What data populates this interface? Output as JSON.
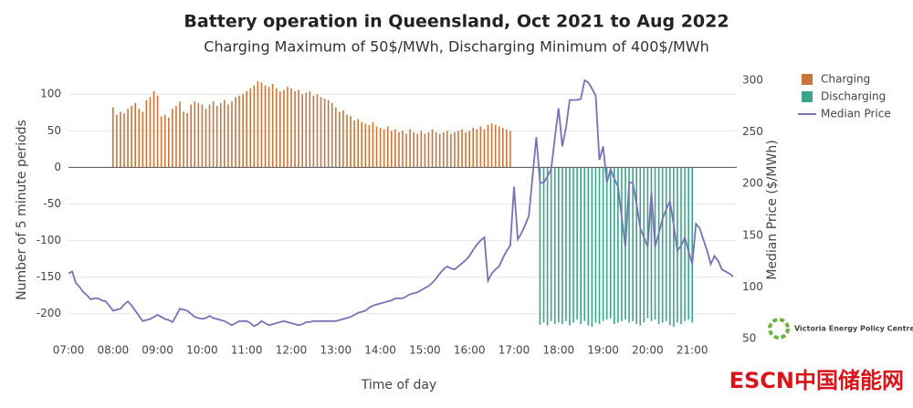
{
  "chart_data": {
    "type": "bar-line",
    "title": "Battery operation in Queensland, Oct 2021 to Aug 2022",
    "subtitle": "Charging Maximum of 50$/MWh, Discharging Minimum of 400$/MWh",
    "xlabel": "Time of day",
    "ylabel": "Number of 5 minute periods",
    "y2label": "Median Price ($/MWh)",
    "xlim": [
      "07:00",
      "22:00"
    ],
    "xticks": [
      "07:00",
      "08:00",
      "09:00",
      "10:00",
      "11:00",
      "12:00",
      "13:00",
      "14:00",
      "15:00",
      "16:00",
      "17:00",
      "18:00",
      "19:00",
      "20:00",
      "21:00"
    ],
    "ylim": [
      -234,
      119
    ],
    "yticks": [
      100,
      50,
      0,
      -50,
      -100,
      -150,
      -200
    ],
    "y2lim": [
      50,
      300
    ],
    "y2ticks": [
      50,
      100,
      150,
      200,
      250,
      300
    ],
    "grid": true,
    "legend": "top-right",
    "x": [
      "07:00",
      "07:05",
      "07:10",
      "07:15",
      "07:20",
      "07:25",
      "07:30",
      "07:35",
      "07:40",
      "07:45",
      "07:50",
      "07:55",
      "08:00",
      "08:05",
      "08:10",
      "08:15",
      "08:20",
      "08:25",
      "08:30",
      "08:35",
      "08:40",
      "08:45",
      "08:50",
      "08:55",
      "09:00",
      "09:05",
      "09:10",
      "09:15",
      "09:20",
      "09:25",
      "09:30",
      "09:35",
      "09:40",
      "09:45",
      "09:50",
      "09:55",
      "10:00",
      "10:05",
      "10:10",
      "10:15",
      "10:20",
      "10:25",
      "10:30",
      "10:35",
      "10:40",
      "10:45",
      "10:50",
      "10:55",
      "11:00",
      "11:05",
      "11:10",
      "11:15",
      "11:20",
      "11:25",
      "11:30",
      "11:35",
      "11:40",
      "11:45",
      "11:50",
      "11:55",
      "12:00",
      "12:05",
      "12:10",
      "12:15",
      "12:20",
      "12:25",
      "12:30",
      "12:35",
      "12:40",
      "12:45",
      "12:50",
      "12:55",
      "13:00",
      "13:05",
      "13:10",
      "13:15",
      "13:20",
      "13:25",
      "13:30",
      "13:35",
      "13:40",
      "13:45",
      "13:50",
      "13:55",
      "14:00",
      "14:05",
      "14:10",
      "14:15",
      "14:20",
      "14:25",
      "14:30",
      "14:35",
      "14:40",
      "14:45",
      "14:50",
      "14:55",
      "15:00",
      "15:05",
      "15:10",
      "15:15",
      "15:20",
      "15:25",
      "15:30",
      "15:35",
      "15:40",
      "15:45",
      "15:50",
      "15:55",
      "16:00",
      "16:05",
      "16:10",
      "16:15",
      "16:20",
      "16:25",
      "16:30",
      "16:35",
      "16:40",
      "16:45",
      "16:50",
      "16:55",
      "17:00",
      "17:05",
      "17:10",
      "17:15",
      "17:20",
      "17:25",
      "17:30",
      "17:35",
      "17:40",
      "17:45",
      "17:50",
      "17:55",
      "18:00",
      "18:05",
      "18:10",
      "18:15",
      "18:20",
      "18:25",
      "18:30",
      "18:35",
      "18:40",
      "18:45",
      "18:50",
      "18:55",
      "19:00",
      "19:05",
      "19:10",
      "19:15",
      "19:20",
      "19:25",
      "19:30",
      "19:35",
      "19:40",
      "19:45",
      "19:50",
      "19:55",
      "20:00",
      "20:05",
      "20:10",
      "20:15",
      "20:20",
      "20:25",
      "20:30",
      "20:35",
      "20:40",
      "20:45",
      "20:50",
      "20:55",
      "21:00",
      "21:05",
      "21:10",
      "21:15",
      "21:20",
      "21:25",
      "21:30",
      "21:35",
      "21:40",
      "21:45",
      "21:50",
      "21:55"
    ],
    "series": [
      {
        "name": "Charging",
        "color": "#c8773c",
        "kind": "bar",
        "values": [
          null,
          null,
          null,
          null,
          null,
          null,
          null,
          null,
          null,
          null,
          null,
          null,
          82,
          72,
          76,
          74,
          80,
          84,
          88,
          80,
          76,
          92,
          96,
          104,
          98,
          70,
          72,
          68,
          80,
          84,
          90,
          76,
          74,
          86,
          90,
          88,
          86,
          80,
          86,
          90,
          84,
          88,
          92,
          86,
          90,
          96,
          98,
          100,
          104,
          108,
          112,
          118,
          116,
          112,
          110,
          114,
          108,
          104,
          106,
          110,
          108,
          104,
          106,
          100,
          102,
          104,
          98,
          100,
          96,
          94,
          92,
          88,
          82,
          76,
          78,
          72,
          70,
          64,
          66,
          62,
          60,
          58,
          62,
          56,
          54,
          52,
          56,
          50,
          52,
          48,
          50,
          46,
          52,
          48,
          46,
          50,
          46,
          48,
          52,
          48,
          46,
          48,
          50,
          46,
          48,
          50,
          52,
          48,
          50,
          54,
          52,
          56,
          52,
          58,
          60,
          58,
          56,
          54,
          52,
          50,
          null,
          null,
          null,
          null,
          null,
          null,
          null,
          null,
          null,
          null,
          null,
          null,
          null,
          null,
          null,
          null,
          null,
          null,
          null,
          null,
          null,
          null,
          null,
          null,
          null,
          null,
          null,
          null,
          null,
          null,
          null,
          null,
          null,
          null,
          null,
          null,
          null,
          null,
          null,
          null,
          null,
          null,
          null,
          null,
          null,
          null,
          null,
          null,
          null,
          null,
          null,
          null,
          null,
          null,
          null,
          null,
          null,
          null,
          null,
          null
        ]
      },
      {
        "name": "Discharging",
        "color": "#3aa58a",
        "kind": "bar",
        "values": [
          null,
          null,
          null,
          null,
          null,
          null,
          null,
          null,
          null,
          null,
          null,
          null,
          null,
          null,
          null,
          null,
          null,
          null,
          null,
          null,
          null,
          null,
          null,
          null,
          null,
          null,
          null,
          null,
          null,
          null,
          null,
          null,
          null,
          null,
          null,
          null,
          null,
          null,
          null,
          null,
          null,
          null,
          null,
          null,
          null,
          null,
          null,
          null,
          null,
          null,
          null,
          null,
          null,
          null,
          null,
          null,
          null,
          null,
          null,
          null,
          null,
          null,
          null,
          null,
          null,
          null,
          null,
          null,
          null,
          null,
          null,
          null,
          null,
          null,
          null,
          null,
          null,
          null,
          null,
          null,
          null,
          null,
          null,
          null,
          null,
          null,
          null,
          null,
          null,
          null,
          null,
          null,
          null,
          null,
          null,
          null,
          null,
          null,
          null,
          null,
          null,
          null,
          null,
          null,
          null,
          null,
          null,
          null,
          null,
          null,
          null,
          null,
          null,
          null,
          null,
          null,
          null,
          null,
          null,
          null,
          null,
          null,
          null,
          null,
          null,
          null,
          null,
          -215,
          -212,
          -216,
          -210,
          -214,
          -212,
          -214,
          -210,
          -216,
          -212,
          -208,
          -214,
          -210,
          -216,
          -218,
          -212,
          -214,
          -210,
          -208,
          -206,
          -214,
          -212,
          -210,
          -208,
          -212,
          -210,
          -214,
          -216,
          -212,
          -206,
          -210,
          -208,
          -214,
          -212,
          -210,
          -216,
          -218,
          -212,
          -214,
          -210,
          -208,
          -212,
          null,
          null,
          null,
          null,
          null,
          null,
          null,
          null,
          null,
          null,
          null
        ]
      },
      {
        "name": "Median Price",
        "color": "#7474b4",
        "kind": "line",
        "axis": "y2",
        "values": [
          113,
          115,
          104,
          100,
          95,
          92,
          88,
          89,
          89,
          87,
          86,
          82,
          77,
          78,
          79,
          83,
          86,
          82,
          77,
          72,
          67,
          68,
          69,
          71,
          73,
          71,
          69,
          68,
          66,
          72,
          79,
          78,
          77,
          74,
          71,
          70,
          69,
          70,
          72,
          70,
          69,
          68,
          67,
          65,
          63,
          65,
          67,
          67,
          67,
          65,
          62,
          64,
          67,
          65,
          63,
          64,
          65,
          66,
          67,
          66,
          65,
          64,
          63,
          64,
          66,
          66,
          67,
          67,
          67,
          67,
          67,
          67,
          67,
          68,
          69,
          70,
          71,
          73,
          75,
          76,
          77,
          80,
          82,
          83,
          84,
          85,
          86,
          87,
          89,
          89,
          89,
          91,
          93,
          94,
          95,
          97,
          99,
          101,
          104,
          108,
          113,
          117,
          120,
          118,
          117,
          120,
          123,
          126,
          130,
          136,
          141,
          145,
          148,
          106,
          113,
          117,
          120,
          128,
          135,
          140,
          197,
          146,
          152,
          160,
          169,
          207,
          245,
          201,
          201,
          207,
          214,
          244,
          273,
          236,
          254,
          281,
          281,
          281,
          282,
          300,
          298,
          292,
          285,
          223,
          236,
          201,
          214,
          205,
          197,
          168,
          139,
          201,
          201,
          180,
          157,
          148,
          139,
          192,
          139,
          152,
          166,
          175,
          183,
          160,
          135,
          140,
          148,
          135,
          122,
          161,
          157,
          146,
          135,
          122,
          130,
          125,
          117,
          115,
          113,
          110
        ]
      }
    ]
  },
  "logo": "Victoria Energy Policy Centre",
  "watermark": "ESCN中国储能网"
}
